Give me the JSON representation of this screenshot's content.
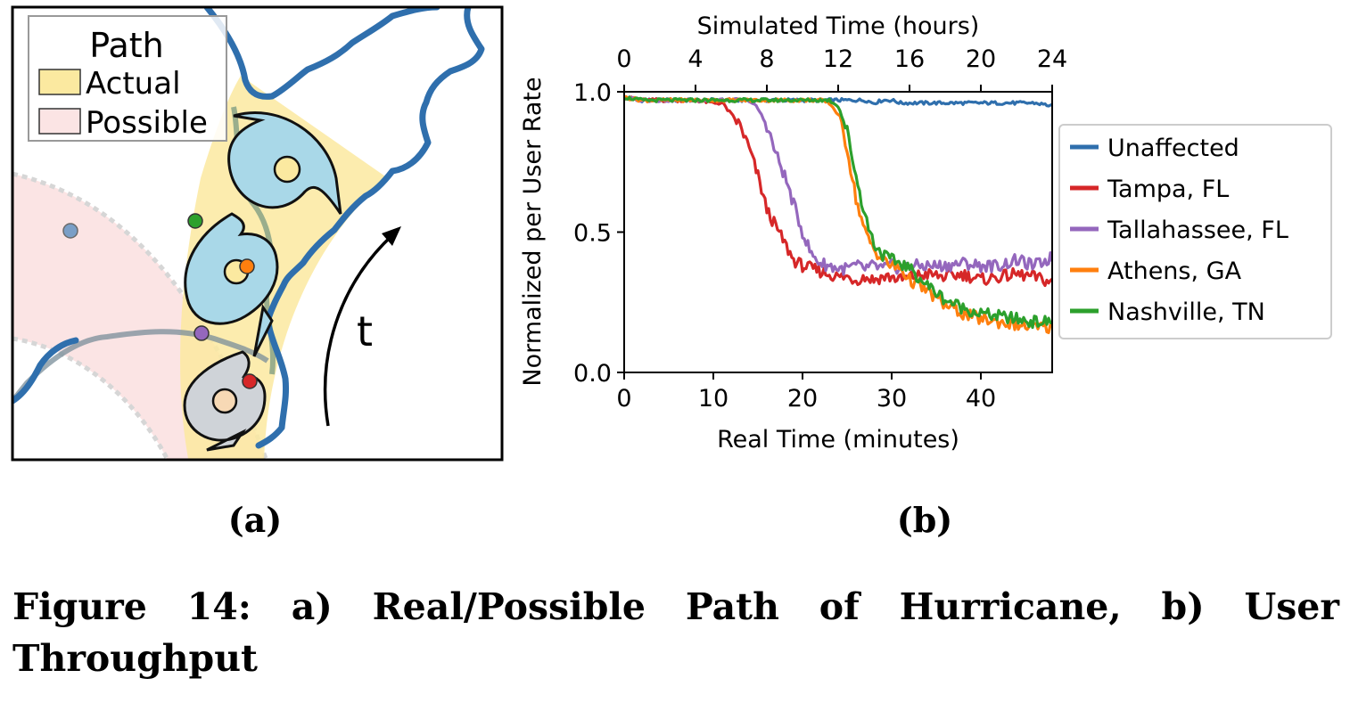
{
  "panel_a": {
    "legend_title": "Path",
    "legend_items": [
      {
        "label": "Actual",
        "color": "#fbe9a0"
      },
      {
        "label": "Possible",
        "color": "#fbe4e4"
      }
    ],
    "time_label": "t",
    "sublabel": "(a)",
    "icons": [
      "hurricane-icon",
      "hurricane-icon",
      "hurricane-icon"
    ]
  },
  "panel_b": {
    "sublabel": "(b)"
  },
  "caption": "Figure 14: a) Real/Possible Path of Hurricane, b) User Throughput",
  "chart_data": {
    "type": "line",
    "title": "",
    "xlabel": "Real Time (minutes)",
    "x2label": "Simulated Time (hours)",
    "ylabel": "Normalized per User Rate",
    "xlim": [
      0,
      48
    ],
    "ylim": [
      0,
      1
    ],
    "x2lim": [
      0,
      24
    ],
    "xticks": [
      0,
      10,
      20,
      30,
      40
    ],
    "x2ticks": [
      0,
      4,
      8,
      12,
      16,
      20,
      24
    ],
    "yticks": [
      "0.0",
      "0.5",
      "1.0"
    ],
    "grid": false,
    "legend_position": "right",
    "x": [
      0,
      2,
      4,
      6,
      8,
      10,
      11,
      12,
      13,
      14,
      15,
      16,
      17,
      18,
      19,
      20,
      21,
      22,
      23,
      24,
      25,
      26,
      27,
      28,
      29,
      30,
      31,
      32,
      34,
      36,
      38,
      40,
      42,
      44,
      46,
      48
    ],
    "series": [
      {
        "name": "Unaffected",
        "color": "#2f6fad",
        "values": [
          0.98,
          0.97,
          0.97,
          0.97,
          0.97,
          0.97,
          0.97,
          0.97,
          0.97,
          0.97,
          0.97,
          0.97,
          0.97,
          0.97,
          0.97,
          0.97,
          0.97,
          0.97,
          0.97,
          0.97,
          0.97,
          0.97,
          0.97,
          0.96,
          0.97,
          0.97,
          0.96,
          0.96,
          0.96,
          0.96,
          0.96,
          0.96,
          0.96,
          0.96,
          0.96,
          0.95
        ]
      },
      {
        "name": "Tampa, FL",
        "color": "#d62728",
        "values": [
          0.98,
          0.97,
          0.97,
          0.97,
          0.97,
          0.96,
          0.96,
          0.92,
          0.88,
          0.8,
          0.7,
          0.58,
          0.52,
          0.46,
          0.4,
          0.38,
          0.37,
          0.36,
          0.35,
          0.34,
          0.34,
          0.33,
          0.34,
          0.33,
          0.34,
          0.34,
          0.33,
          0.34,
          0.35,
          0.34,
          0.35,
          0.33,
          0.34,
          0.35,
          0.34,
          0.32
        ]
      },
      {
        "name": "Tallahassee, FL",
        "color": "#9467bd",
        "values": [
          0.98,
          0.97,
          0.97,
          0.97,
          0.97,
          0.97,
          0.97,
          0.97,
          0.97,
          0.97,
          0.94,
          0.88,
          0.78,
          0.7,
          0.6,
          0.5,
          0.42,
          0.39,
          0.38,
          0.37,
          0.37,
          0.38,
          0.37,
          0.38,
          0.37,
          0.38,
          0.37,
          0.38,
          0.38,
          0.38,
          0.39,
          0.38,
          0.38,
          0.4,
          0.38,
          0.41
        ]
      },
      {
        "name": "Athens, GA",
        "color": "#ff7f0e",
        "values": [
          0.98,
          0.97,
          0.97,
          0.97,
          0.97,
          0.97,
          0.97,
          0.97,
          0.97,
          0.97,
          0.97,
          0.97,
          0.97,
          0.97,
          0.97,
          0.97,
          0.97,
          0.97,
          0.96,
          0.92,
          0.8,
          0.62,
          0.5,
          0.44,
          0.4,
          0.38,
          0.37,
          0.33,
          0.29,
          0.24,
          0.21,
          0.19,
          0.18,
          0.17,
          0.16,
          0.16
        ]
      },
      {
        "name": "Nashville, TN",
        "color": "#2ca02c",
        "values": [
          0.98,
          0.97,
          0.97,
          0.97,
          0.97,
          0.97,
          0.97,
          0.97,
          0.97,
          0.97,
          0.97,
          0.97,
          0.97,
          0.97,
          0.97,
          0.97,
          0.97,
          0.97,
          0.97,
          0.95,
          0.86,
          0.7,
          0.56,
          0.46,
          0.42,
          0.4,
          0.39,
          0.37,
          0.31,
          0.26,
          0.23,
          0.21,
          0.2,
          0.19,
          0.18,
          0.18
        ]
      }
    ]
  }
}
